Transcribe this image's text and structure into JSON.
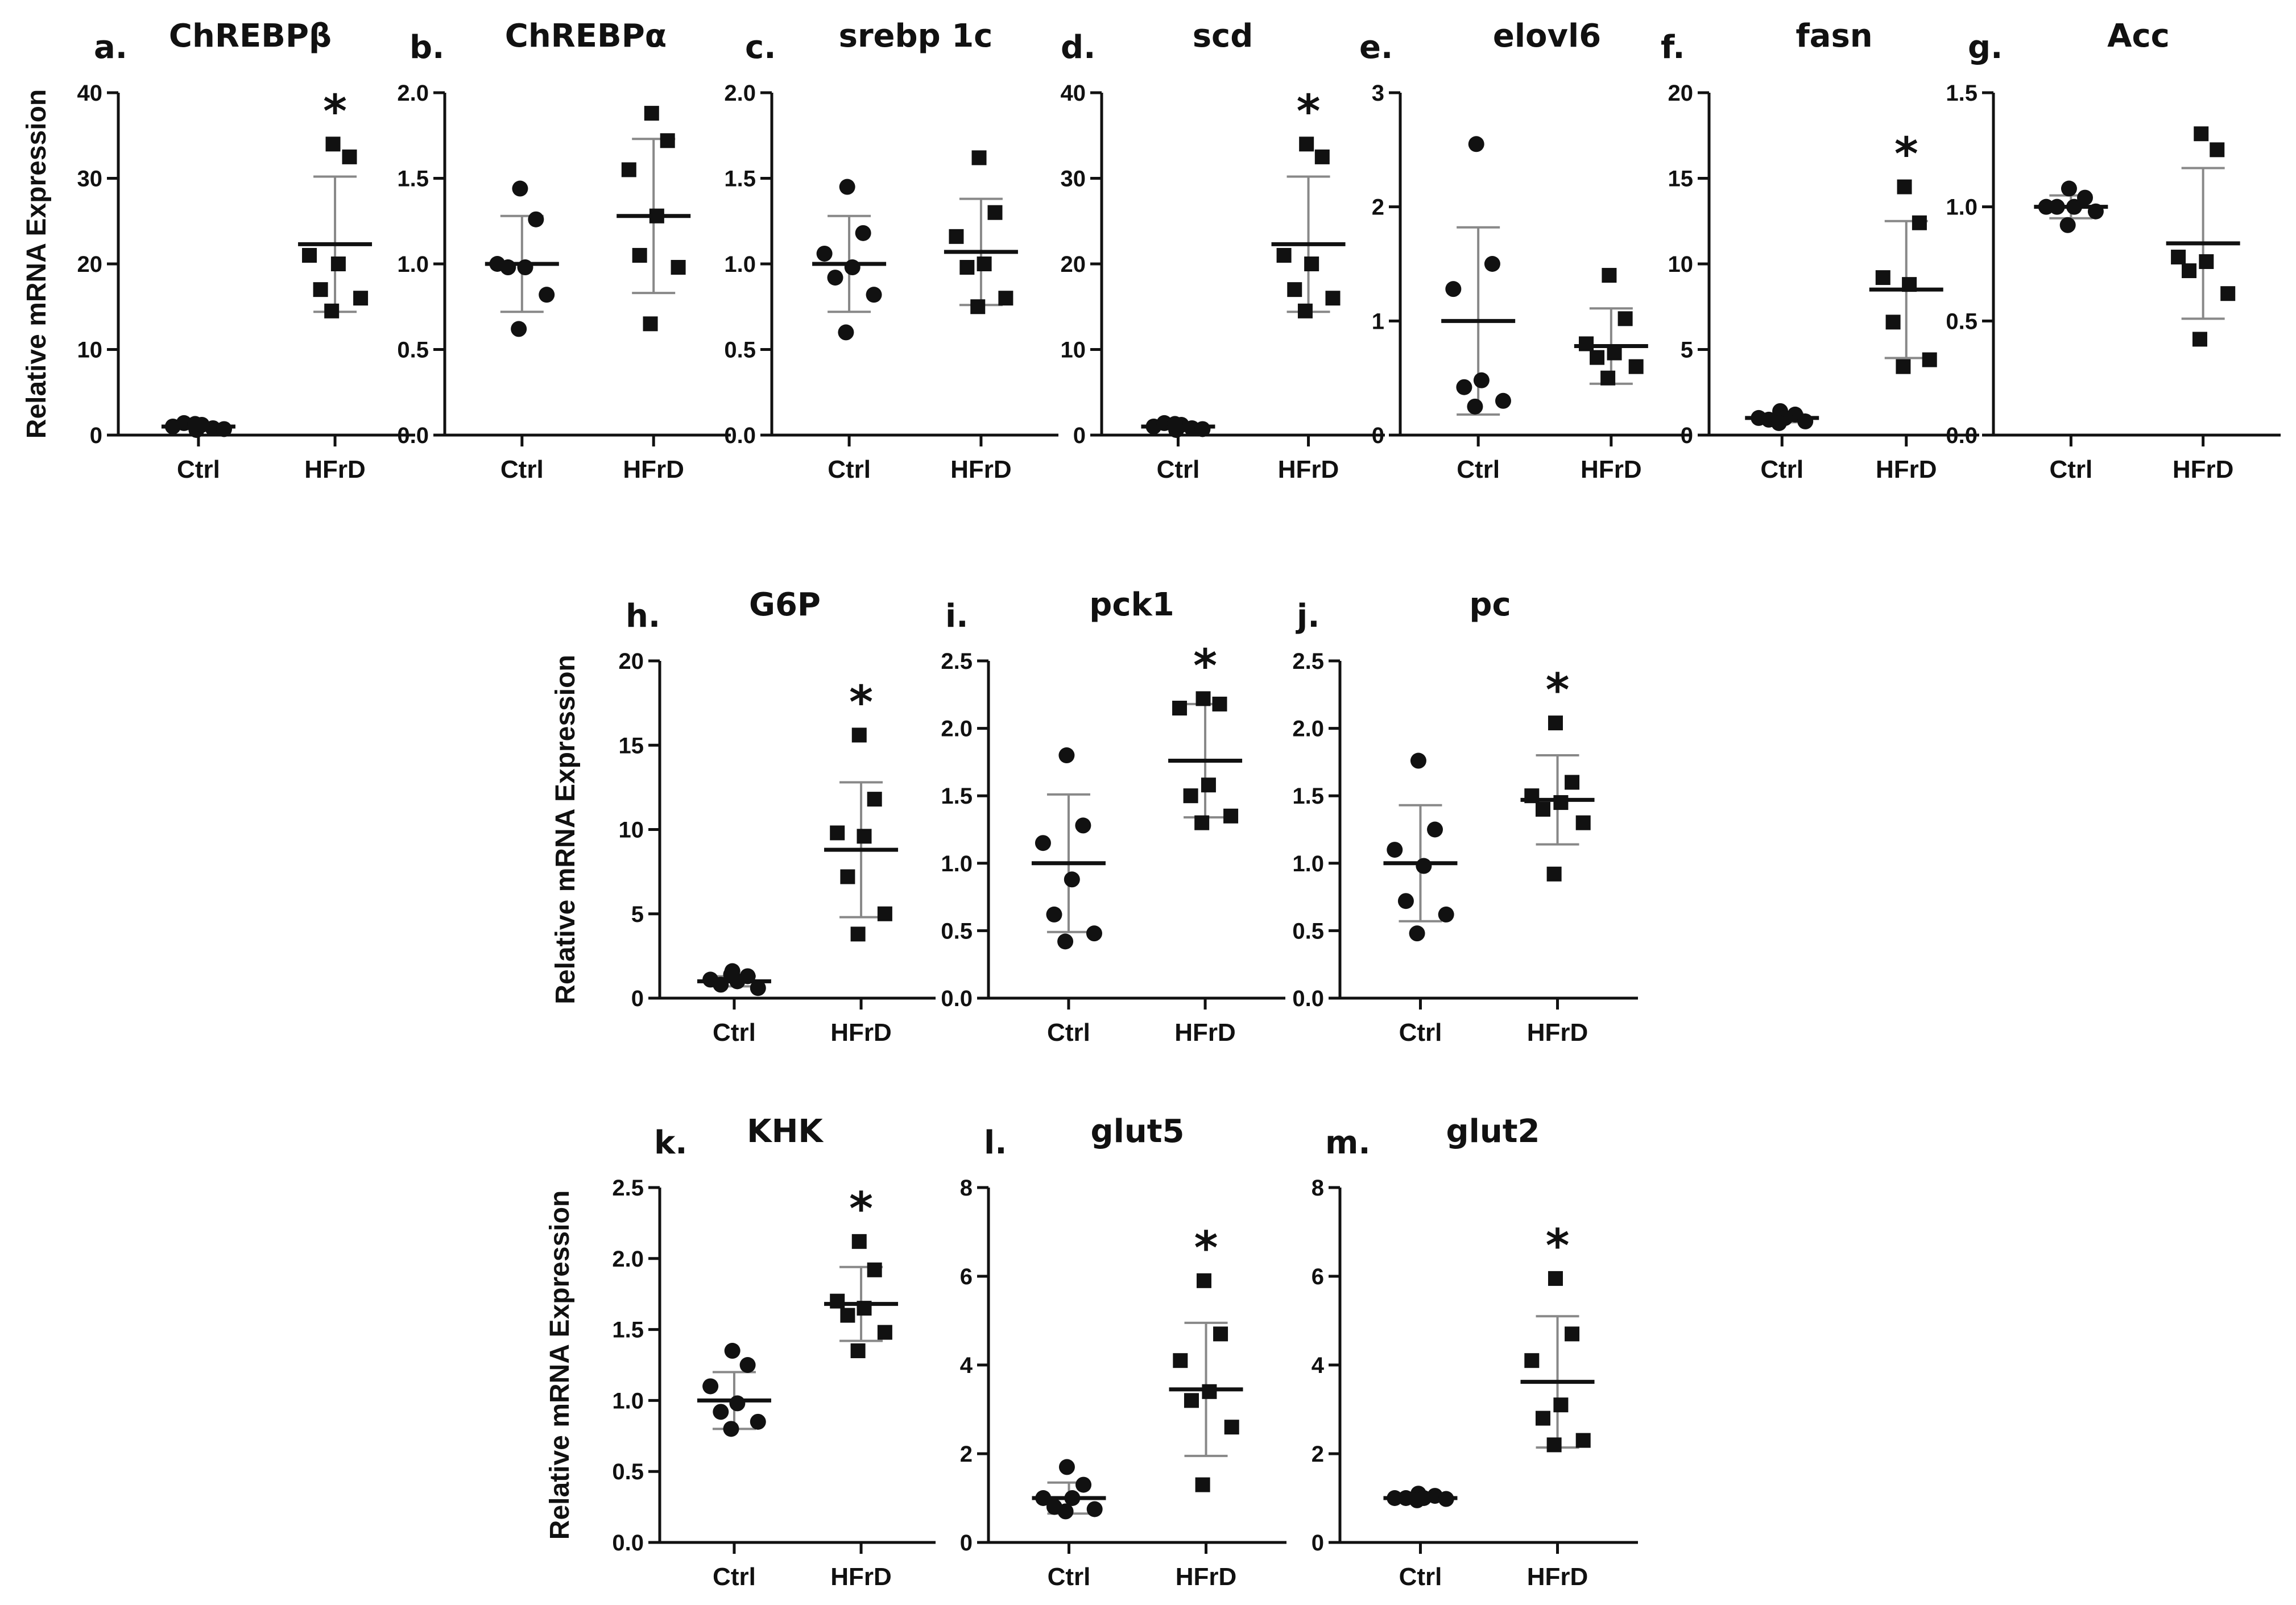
{
  "chart_data": [
    {
      "type": "scatter",
      "panel": "a.",
      "title": "ChREBPβ",
      "ylabel": "Relative mRNA Expression",
      "ylim": [
        0,
        40
      ],
      "yticks": [
        "0",
        "10",
        "20",
        "30",
        "40"
      ],
      "categories": [
        "Ctrl",
        "HFrD"
      ],
      "series": [
        {
          "name": "Ctrl",
          "marker": "circle",
          "values": [
            0.6,
            0.8,
            1.0,
            1.2,
            1.4,
            0.7,
            1.3
          ],
          "mean": 1.0,
          "sd": 0.3
        },
        {
          "name": "HFrD",
          "marker": "square",
          "values": [
            34,
            32.5,
            21,
            20,
            17,
            16,
            14.5
          ],
          "mean": 22.3,
          "sd": 7.9,
          "significant": true
        }
      ]
    },
    {
      "type": "scatter",
      "panel": "b.",
      "title": "ChREBPα",
      "ylabel": "",
      "ylim": [
        0,
        2
      ],
      "yticks": [
        "0.0",
        "0.5",
        "1.0",
        "1.5",
        "2.0"
      ],
      "categories": [
        "Ctrl",
        "HFrD"
      ],
      "series": [
        {
          "name": "Ctrl",
          "marker": "circle",
          "values": [
            1.44,
            1.26,
            1.0,
            0.98,
            0.98,
            0.82,
            0.62
          ],
          "mean": 1.0,
          "sd": 0.28
        },
        {
          "name": "HFrD",
          "marker": "square",
          "values": [
            1.88,
            1.72,
            1.55,
            1.28,
            1.05,
            0.98,
            0.65
          ],
          "mean": 1.28,
          "sd": 0.45
        }
      ]
    },
    {
      "type": "scatter",
      "panel": "c.",
      "title": "srebp 1c",
      "ylabel": "",
      "ylim": [
        0,
        2
      ],
      "yticks": [
        "0.0",
        "0.5",
        "1.0",
        "1.5",
        "2.0"
      ],
      "categories": [
        "Ctrl",
        "HFrD"
      ],
      "series": [
        {
          "name": "Ctrl",
          "marker": "circle",
          "values": [
            1.45,
            1.18,
            1.06,
            0.98,
            0.92,
            0.82,
            0.6
          ],
          "mean": 1.0,
          "sd": 0.28
        },
        {
          "name": "HFrD",
          "marker": "square",
          "values": [
            1.62,
            1.3,
            1.16,
            1.0,
            0.98,
            0.8,
            0.75
          ],
          "mean": 1.07,
          "sd": 0.31
        }
      ]
    },
    {
      "type": "scatter",
      "panel": "d.",
      "title": "scd",
      "ylabel": "",
      "ylim": [
        0,
        40
      ],
      "yticks": [
        "0",
        "10",
        "20",
        "30",
        "40"
      ],
      "categories": [
        "Ctrl",
        "HFrD"
      ],
      "series": [
        {
          "name": "Ctrl",
          "marker": "circle",
          "values": [
            0.6,
            0.8,
            1.0,
            1.2,
            1.4,
            0.7,
            1.3
          ],
          "mean": 1.0,
          "sd": 0.3
        },
        {
          "name": "HFrD",
          "marker": "square",
          "values": [
            34,
            32.5,
            21,
            20,
            17,
            16,
            14.5
          ],
          "mean": 22.3,
          "sd": 7.9,
          "significant": true
        }
      ]
    },
    {
      "type": "scatter",
      "panel": "e.",
      "title": "elovl6",
      "ylabel": "",
      "ylim": [
        0,
        3
      ],
      "yticks": [
        "0",
        "1",
        "2",
        "3"
      ],
      "categories": [
        "Ctrl",
        "HFrD"
      ],
      "series": [
        {
          "name": "Ctrl",
          "marker": "circle",
          "values": [
            2.55,
            1.5,
            1.28,
            0.48,
            0.42,
            0.3,
            0.25
          ],
          "mean": 1.0,
          "sd": 0.82
        },
        {
          "name": "HFrD",
          "marker": "square",
          "values": [
            1.4,
            1.02,
            0.8,
            0.72,
            0.68,
            0.6,
            0.5
          ],
          "mean": 0.78,
          "sd": 0.33
        }
      ]
    },
    {
      "type": "scatter",
      "panel": "f.",
      "title": "fasn",
      "ylabel": "",
      "ylim": [
        0,
        20
      ],
      "yticks": [
        "0",
        "5",
        "10",
        "15",
        "20"
      ],
      "categories": [
        "Ctrl",
        "HFrD"
      ],
      "series": [
        {
          "name": "Ctrl",
          "marker": "circle",
          "values": [
            1.4,
            1.2,
            1.0,
            1.0,
            0.9,
            0.8,
            0.7
          ],
          "mean": 1.0,
          "sd": 0.25
        },
        {
          "name": "HFrD",
          "marker": "square",
          "values": [
            14.5,
            12.4,
            9.2,
            8.8,
            6.6,
            4.4,
            4.0
          ],
          "mean": 8.5,
          "sd": 4.0,
          "significant": true
        }
      ]
    },
    {
      "type": "scatter",
      "panel": "g.",
      "title": "Acc",
      "ylabel": "",
      "ylim": [
        0,
        1.5
      ],
      "yticks": [
        "0.0",
        "0.5",
        "1.0",
        "1.5"
      ],
      "categories": [
        "Ctrl",
        "HFrD"
      ],
      "series": [
        {
          "name": "Ctrl",
          "marker": "circle",
          "values": [
            1.08,
            1.04,
            1.0,
            1.0,
            1.0,
            0.98,
            0.92
          ],
          "mean": 1.0,
          "sd": 0.05
        },
        {
          "name": "HFrD",
          "marker": "square",
          "values": [
            1.32,
            1.25,
            0.78,
            0.76,
            0.72,
            0.62,
            0.42
          ],
          "mean": 0.84,
          "sd": 0.33
        }
      ]
    },
    {
      "type": "scatter",
      "panel": "h.",
      "title": "G6P",
      "ylabel": "Relative mRNA Expression",
      "ylim": [
        0,
        20
      ],
      "yticks": [
        "0",
        "5",
        "10",
        "15",
        "20"
      ],
      "categories": [
        "Ctrl",
        "HFrD"
      ],
      "series": [
        {
          "name": "Ctrl",
          "marker": "circle",
          "values": [
            1.6,
            1.3,
            1.1,
            1.0,
            0.8,
            0.6,
            1.4
          ],
          "mean": 1.0,
          "sd": 0.3
        },
        {
          "name": "HFrD",
          "marker": "square",
          "values": [
            15.6,
            11.8,
            9.8,
            9.6,
            7.2,
            5.0,
            3.8
          ],
          "mean": 8.8,
          "sd": 4.0,
          "significant": true
        }
      ]
    },
    {
      "type": "scatter",
      "panel": "i.",
      "title": "pck1",
      "ylabel": "",
      "ylim": [
        0,
        2.5
      ],
      "yticks": [
        "0.0",
        "0.5",
        "1.0",
        "1.5",
        "2.0",
        "2.5"
      ],
      "categories": [
        "Ctrl",
        "HFrD"
      ],
      "series": [
        {
          "name": "Ctrl",
          "marker": "circle",
          "values": [
            1.8,
            1.28,
            1.15,
            0.88,
            0.62,
            0.48,
            0.42
          ],
          "mean": 1.0,
          "sd": 0.51
        },
        {
          "name": "HFrD",
          "marker": "square",
          "values": [
            2.22,
            2.18,
            2.15,
            1.58,
            1.5,
            1.35,
            1.3
          ],
          "mean": 1.76,
          "sd": 0.42,
          "significant": true
        }
      ]
    },
    {
      "type": "scatter",
      "panel": "j.",
      "title": "pc",
      "ylabel": "",
      "ylim": [
        0,
        2.5
      ],
      "yticks": [
        "0.0",
        "0.5",
        "1.0",
        "1.5",
        "2.0",
        "2.5"
      ],
      "categories": [
        "Ctrl",
        "HFrD"
      ],
      "series": [
        {
          "name": "Ctrl",
          "marker": "circle",
          "values": [
            1.76,
            1.25,
            1.1,
            0.98,
            0.72,
            0.62,
            0.48
          ],
          "mean": 1.0,
          "sd": 0.43
        },
        {
          "name": "HFrD",
          "marker": "square",
          "values": [
            2.04,
            1.6,
            1.5,
            1.45,
            1.4,
            1.3,
            0.92
          ],
          "mean": 1.47,
          "sd": 0.33,
          "significant": true
        }
      ]
    },
    {
      "type": "scatter",
      "panel": "k.",
      "title": "KHK",
      "ylabel": "Relative mRNA Expression",
      "ylim": [
        0,
        2.5
      ],
      "yticks": [
        "0.0",
        "0.5",
        "1.0",
        "1.5",
        "2.0",
        "2.5"
      ],
      "categories": [
        "Ctrl",
        "HFrD"
      ],
      "series": [
        {
          "name": "Ctrl",
          "marker": "circle",
          "values": [
            1.35,
            1.25,
            1.1,
            0.98,
            0.92,
            0.85,
            0.8
          ],
          "mean": 1.0,
          "sd": 0.2
        },
        {
          "name": "HFrD",
          "marker": "square",
          "values": [
            2.12,
            1.92,
            1.7,
            1.65,
            1.6,
            1.48,
            1.35
          ],
          "mean": 1.68,
          "sd": 0.26,
          "significant": true
        }
      ]
    },
    {
      "type": "scatter",
      "panel": "l.",
      "title": "glut5",
      "ylabel": "",
      "ylim": [
        0,
        8
      ],
      "yticks": [
        "0",
        "2",
        "4",
        "6",
        "8"
      ],
      "categories": [
        "Ctrl",
        "HFrD"
      ],
      "series": [
        {
          "name": "Ctrl",
          "marker": "circle",
          "values": [
            1.7,
            1.3,
            1.0,
            1.0,
            0.8,
            0.75,
            0.7
          ],
          "mean": 1.0,
          "sd": 0.35
        },
        {
          "name": "HFrD",
          "marker": "square",
          "values": [
            5.9,
            4.7,
            4.1,
            3.4,
            3.2,
            2.6,
            1.3
          ],
          "mean": 3.45,
          "sd": 1.5,
          "significant": true
        }
      ]
    },
    {
      "type": "scatter",
      "panel": "m.",
      "title": "glut2",
      "ylabel": "",
      "ylim": [
        0,
        8
      ],
      "yticks": [
        "0",
        "2",
        "4",
        "6",
        "8"
      ],
      "categories": [
        "Ctrl",
        "HFrD"
      ],
      "series": [
        {
          "name": "Ctrl",
          "marker": "circle",
          "values": [
            1.1,
            1.05,
            1.0,
            1.0,
            1.0,
            0.98,
            0.95
          ],
          "mean": 1.0,
          "sd": 0.05
        },
        {
          "name": "HFrD",
          "marker": "square",
          "values": [
            5.95,
            4.7,
            4.1,
            3.1,
            2.8,
            2.3,
            2.2
          ],
          "mean": 3.62,
          "sd": 1.48,
          "significant": true
        }
      ]
    }
  ],
  "significance_mark": "*"
}
